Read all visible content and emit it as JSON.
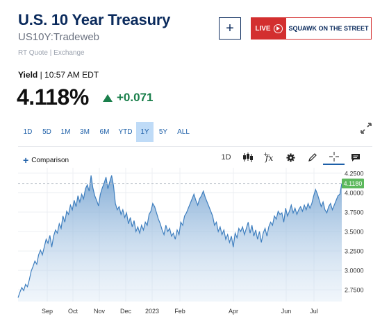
{
  "header": {
    "title": "U.S. 10 Year Treasury",
    "symbol": "US10Y:Tradeweb",
    "quote_source": "RT Quote | Exchange",
    "add_label": "+",
    "live": {
      "tag": "LIVE",
      "text": "SQUAWK ON THE STREET"
    }
  },
  "quote": {
    "label": "Yield",
    "time": "10:57 AM EDT",
    "price": "4.118%",
    "change": "+0.071",
    "colors": {
      "up": "#1a7f4b"
    }
  },
  "ranges": {
    "active": "1Y",
    "items": [
      "1D",
      "5D",
      "1M",
      "3M",
      "6M",
      "YTD",
      "1Y",
      "5Y",
      "ALL"
    ]
  },
  "toolbar": {
    "comparison_label": "Comparison",
    "interval_label": "1D",
    "icons": [
      "candlestick-icon",
      "function-icon",
      "gear-icon",
      "pencil-icon",
      "crosshair-icon",
      "comment-icon"
    ]
  },
  "chart_data": {
    "type": "area",
    "x_tick_labels": [
      "Sep",
      "Oct",
      "Nov",
      "Dec",
      "2023",
      "Feb",
      "Apr",
      "Jun",
      "Jul"
    ],
    "y_tick_labels": [
      "4.2500",
      "4.0000",
      "3.7500",
      "3.5000",
      "3.2500",
      "3.0000",
      "2.7500"
    ],
    "ylim": [
      2.6,
      4.32
    ],
    "last_value_label": "4.1180",
    "last_value": 4.118,
    "values": [
      2.65,
      2.72,
      2.78,
      2.74,
      2.82,
      2.79,
      2.88,
      2.99,
      3.05,
      3.12,
      3.08,
      3.2,
      3.26,
      3.2,
      3.3,
      3.4,
      3.35,
      3.45,
      3.3,
      3.44,
      3.52,
      3.48,
      3.6,
      3.54,
      3.7,
      3.62,
      3.76,
      3.72,
      3.84,
      3.78,
      3.9,
      3.82,
      3.96,
      3.88,
      3.98,
      3.92,
      4.05,
      4.1,
      4.02,
      4.22,
      4.06,
      3.96,
      3.9,
      3.83,
      3.98,
      4.06,
      4.12,
      4.2,
      4.05,
      4.14,
      4.22,
      4.09,
      3.86,
      3.78,
      3.82,
      3.72,
      3.78,
      3.68,
      3.74,
      3.6,
      3.68,
      3.56,
      3.64,
      3.5,
      3.56,
      3.48,
      3.58,
      3.52,
      3.62,
      3.58,
      3.72,
      3.76,
      3.86,
      3.82,
      3.74,
      3.66,
      3.6,
      3.52,
      3.46,
      3.58,
      3.5,
      3.54,
      3.44,
      3.48,
      3.4,
      3.52,
      3.46,
      3.62,
      3.58,
      3.7,
      3.74,
      3.8,
      3.86,
      3.92,
      3.98,
      3.9,
      3.84,
      3.92,
      3.96,
      4.02,
      3.94,
      3.88,
      3.82,
      3.76,
      3.7,
      3.58,
      3.62,
      3.5,
      3.56,
      3.46,
      3.52,
      3.4,
      3.46,
      3.36,
      3.44,
      3.3,
      3.48,
      3.42,
      3.54,
      3.5,
      3.56,
      3.46,
      3.54,
      3.62,
      3.48,
      3.58,
      3.44,
      3.52,
      3.4,
      3.5,
      3.36,
      3.48,
      3.54,
      3.44,
      3.56,
      3.62,
      3.58,
      3.7,
      3.66,
      3.76,
      3.72,
      3.74,
      3.62,
      3.8,
      3.7,
      3.76,
      3.84,
      3.74,
      3.8,
      3.72,
      3.78,
      3.82,
      3.76,
      3.84,
      3.78,
      3.86,
      3.8,
      3.86,
      3.96,
      4.04,
      3.98,
      3.9,
      3.82,
      3.88,
      3.78,
      3.74,
      3.82,
      3.86,
      3.78,
      3.84,
      3.9,
      3.96,
      3.98,
      4.118
    ]
  }
}
